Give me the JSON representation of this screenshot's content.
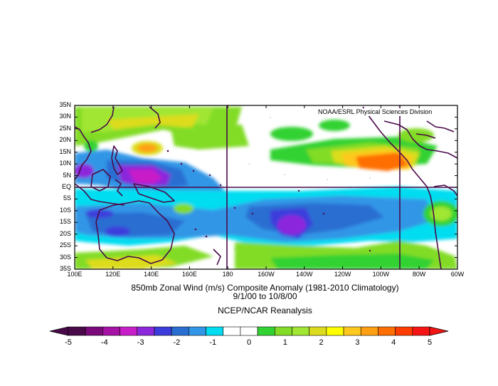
{
  "credit": "NOAA/ESRL Physical Sciences Division",
  "lat_labels": [
    "35N",
    "30N",
    "25N",
    "20N",
    "15N",
    "10N",
    "5N",
    "EQ",
    "5S",
    "10S",
    "15S",
    "20S",
    "25S",
    "30S",
    "35S"
  ],
  "lon_labels": [
    "100E",
    "120E",
    "140E",
    "160E",
    "180",
    "160W",
    "140W",
    "120W",
    "100W",
    "80W",
    "60W"
  ],
  "caption": {
    "line1": "850mb Zonal Wind (m/s) Composite Anomaly (1981-2010 Climatology)",
    "line2": "9/1/00  to 10/8/00",
    "line3": "NCEP/NCAR Reanalysis"
  },
  "colorbar": {
    "labels": [
      "-5",
      "-4",
      "-3",
      "-2",
      "-1",
      "0",
      "1",
      "2",
      "3",
      "4",
      "5"
    ],
    "colors": [
      "#4a0a4a",
      "#7a0a7a",
      "#a612a6",
      "#c81ec8",
      "#8c28dc",
      "#3c3cdc",
      "#2a6ed2",
      "#3296e6",
      "#00dcf0",
      "#ffffff",
      "#ffffff",
      "#32d232",
      "#82dc28",
      "#a0e632",
      "#dcdc1e",
      "#ffff00",
      "#ffc81e",
      "#ffa014",
      "#ff6e00",
      "#ff3c00",
      "#f51414"
    ]
  },
  "map": {
    "lon_range": [
      "100E",
      "60W"
    ],
    "lat_range": [
      "35S",
      "35N"
    ],
    "grid_lines": [
      "180",
      "EQ",
      "90W"
    ]
  }
}
